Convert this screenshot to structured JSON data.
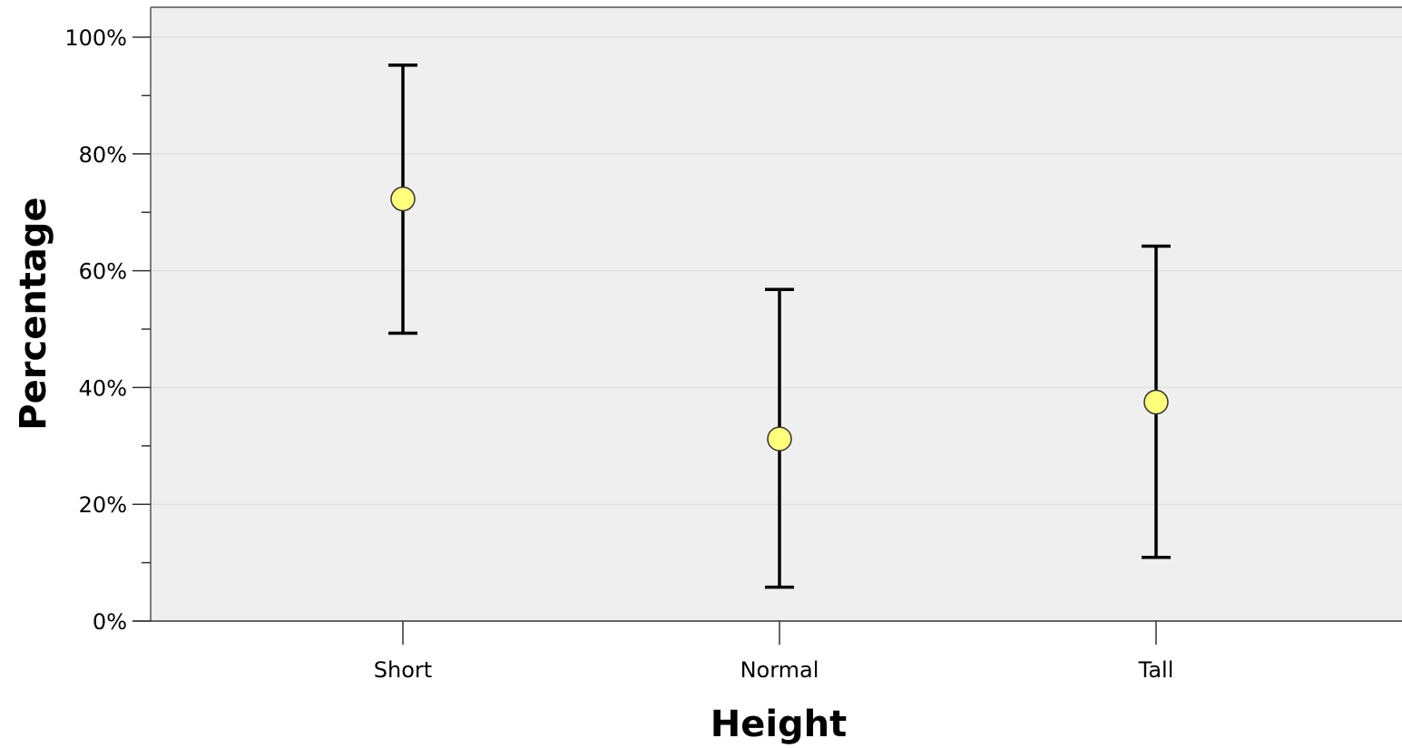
{
  "chart_data": {
    "type": "scatter",
    "xlabel": "Height",
    "ylabel": "Percentage",
    "categories": [
      "Short",
      "Normal",
      "Tall"
    ],
    "means": [
      72.3,
      31.2,
      37.5
    ],
    "error_low": [
      49.3,
      5.8,
      10.9
    ],
    "error_high": [
      95.2,
      56.8,
      64.2
    ],
    "ylim": [
      0,
      100
    ],
    "yticks": [
      "0%",
      "20%",
      "40%",
      "60%",
      "80%",
      "100%"
    ],
    "ytick_values": [
      0,
      20,
      40,
      60,
      80,
      100
    ],
    "grid": true,
    "colors": {
      "plot_background": "#efefef",
      "marker_fill": "#ffff7a",
      "marker_stroke": "#333333",
      "error_bar": "#000000",
      "gridline": "#e0e0e0"
    }
  }
}
